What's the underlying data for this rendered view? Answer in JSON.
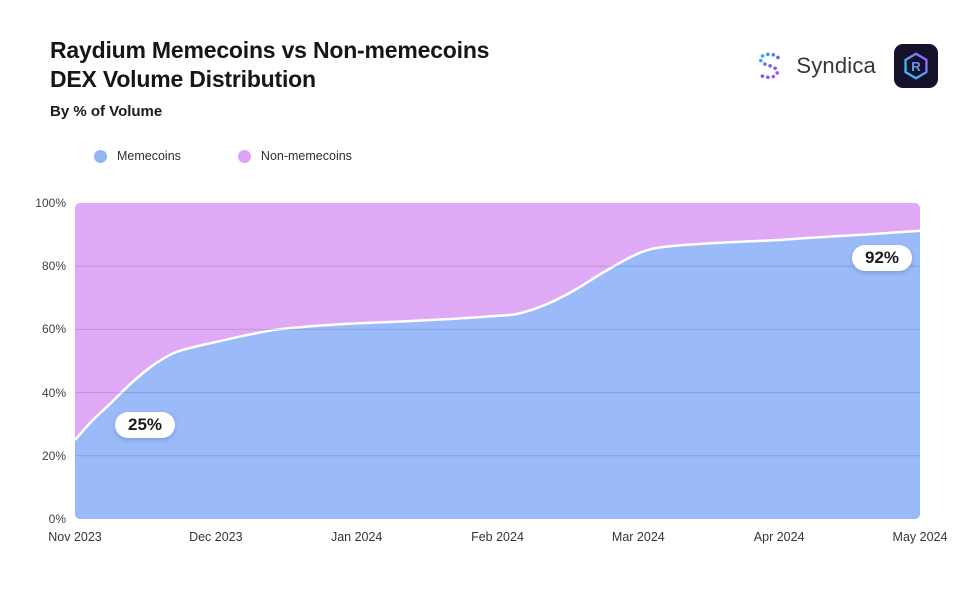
{
  "header": {
    "title_line1": "Raydium Memecoins vs Non-memecoins",
    "title_line2": "DEX Volume Distribution",
    "subtitle": "By % of Volume",
    "brand_left": "Syndica",
    "brand_right": "Raydium",
    "raydium_letter": "R"
  },
  "legend": {
    "items": [
      {
        "label": "Memecoins",
        "color": "#94b5f2"
      },
      {
        "label": "Non-memecoins",
        "color": "#dda4f2"
      }
    ]
  },
  "chart_data": {
    "type": "area",
    "stacked": true,
    "units": "% of volume",
    "title": "Raydium Memecoins vs Non-memecoins DEX Volume Distribution",
    "xlabel": "",
    "ylabel": "By % of Volume",
    "ylim": [
      0,
      100
    ],
    "grid": "horizontal",
    "legend_position": "top-left",
    "categories": [
      "Nov 2023",
      "Dec 2023",
      "Jan 2024",
      "Feb 2024",
      "Mar 2024",
      "Apr 2024",
      "May 2024"
    ],
    "y_tick_labels": [
      "100%",
      "80%",
      "60%",
      "40%",
      "20%",
      "0%"
    ],
    "series": [
      {
        "name": "Memecoins",
        "color": "#9abafa",
        "values": [
          25,
          56,
          62,
          64,
          84,
          88,
          92
        ]
      },
      {
        "name": "Non-memecoins",
        "color": "#e0a9f5",
        "values": [
          75,
          44,
          38,
          36,
          16,
          12,
          8
        ]
      }
    ],
    "curve_memecoins_pct": [
      [
        0,
        25
      ],
      [
        0.12,
        31
      ],
      [
        0.25,
        36.5
      ],
      [
        0.4,
        43
      ],
      [
        0.55,
        48.5
      ],
      [
        0.7,
        52.5
      ],
      [
        0.85,
        54.5
      ],
      [
        1,
        56
      ],
      [
        1.2,
        58
      ],
      [
        1.4,
        59.7
      ],
      [
        1.6,
        60.7
      ],
      [
        1.8,
        61.4
      ],
      [
        2,
        61.9
      ],
      [
        2.35,
        62.6
      ],
      [
        2.7,
        63.4
      ],
      [
        3,
        64.3
      ],
      [
        3.15,
        65
      ],
      [
        3.35,
        68
      ],
      [
        3.55,
        72.5
      ],
      [
        3.75,
        78
      ],
      [
        3.95,
        83
      ],
      [
        4.1,
        85.5
      ],
      [
        4.3,
        86.6
      ],
      [
        4.5,
        87.2
      ],
      [
        4.75,
        87.8
      ],
      [
        5,
        88.3
      ],
      [
        5.3,
        89.2
      ],
      [
        5.6,
        90
      ],
      [
        6,
        91.2
      ]
    ],
    "annotations": [
      {
        "series": "Memecoins",
        "x": "Nov 2023",
        "label": "25%"
      },
      {
        "series": "Memecoins",
        "x": "May 2024",
        "label": "92%"
      }
    ],
    "boundary_line_color": "#ffffff",
    "gridline_color": "rgba(55,65,130,0.20)"
  }
}
